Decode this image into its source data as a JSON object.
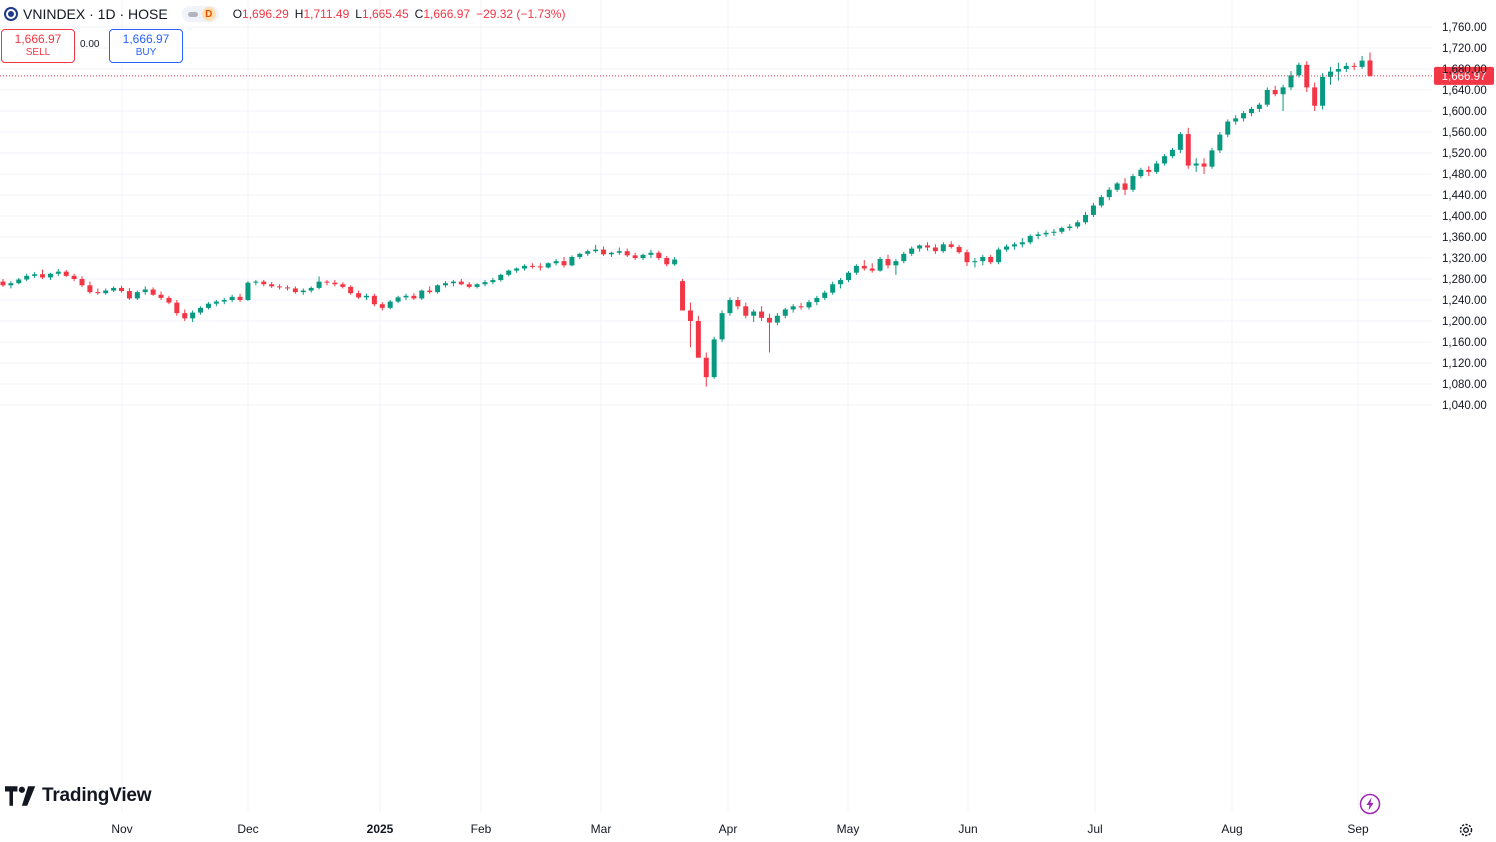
{
  "symbol": {
    "title": "VNINDEX · 1D · HOSE",
    "status_badge": "D"
  },
  "ohlc": {
    "o_label": "O",
    "o_value": "1,696.29",
    "h_label": "H",
    "h_value": "1,711.49",
    "l_label": "L",
    "l_value": "1,665.45",
    "c_label": "C",
    "c_value": "1,666.97",
    "change": "−29.32 (−1.73%)"
  },
  "trade": {
    "sell_price": "1,666.97",
    "sell_label": "SELL",
    "spread": "0.00",
    "buy_price": "1,666.97",
    "buy_label": "BUY"
  },
  "branding": {
    "logo_text": "TradingView"
  },
  "price_label": "1,666.97",
  "colors": {
    "up": "#089981",
    "down": "#f23645",
    "grid": "#f0f3fa",
    "axis_text": "#131722"
  },
  "chart_data": {
    "type": "candlestick",
    "title": "",
    "y_ticks": [
      "1,040.00",
      "1,080.00",
      "1,120.00",
      "1,160.00",
      "1,200.00",
      "1,240.00",
      "1,280.00",
      "1,320.00",
      "1,360.00",
      "1,400.00",
      "1,440.00",
      "1,480.00",
      "1,520.00",
      "1,560.00",
      "1,600.00",
      "1,640.00",
      "1,680.00",
      "1,720.00",
      "1,760.00"
    ],
    "ylim": [
      1020,
      1775
    ],
    "x_labels": [
      "Nov",
      "Dec",
      "2025",
      "Feb",
      "Mar",
      "Apr",
      "May",
      "Jun",
      "Jul",
      "Aug",
      "Sep"
    ],
    "last_price": 1666.97,
    "last_close_line": "dotted",
    "grid": true,
    "candles_ohlc": [
      [
        1275,
        1280,
        1265,
        1268
      ],
      [
        1268,
        1276,
        1262,
        1272
      ],
      [
        1272,
        1282,
        1270,
        1279
      ],
      [
        1279,
        1290,
        1276,
        1286
      ],
      [
        1286,
        1293,
        1282,
        1289
      ],
      [
        1289,
        1298,
        1280,
        1283
      ],
      [
        1283,
        1292,
        1278,
        1290
      ],
      [
        1290,
        1299,
        1286,
        1294
      ],
      [
        1294,
        1297,
        1284,
        1286
      ],
      [
        1286,
        1290,
        1276,
        1280
      ],
      [
        1280,
        1285,
        1265,
        1268
      ],
      [
        1268,
        1275,
        1252,
        1255
      ],
      [
        1255,
        1262,
        1250,
        1253
      ],
      [
        1253,
        1262,
        1250,
        1258
      ],
      [
        1258,
        1266,
        1255,
        1263
      ],
      [
        1263,
        1267,
        1254,
        1257
      ],
      [
        1257,
        1263,
        1240,
        1243
      ],
      [
        1243,
        1258,
        1240,
        1255
      ],
      [
        1255,
        1266,
        1250,
        1260
      ],
      [
        1260,
        1264,
        1248,
        1250
      ],
      [
        1250,
        1256,
        1240,
        1244
      ],
      [
        1244,
        1248,
        1232,
        1235
      ],
      [
        1235,
        1240,
        1210,
        1215
      ],
      [
        1215,
        1222,
        1200,
        1205
      ],
      [
        1205,
        1220,
        1198,
        1216
      ],
      [
        1216,
        1228,
        1212,
        1225
      ],
      [
        1225,
        1236,
        1222,
        1233
      ],
      [
        1233,
        1240,
        1228,
        1237
      ],
      [
        1237,
        1244,
        1232,
        1240
      ],
      [
        1240,
        1250,
        1236,
        1246
      ],
      [
        1246,
        1252,
        1236,
        1240
      ],
      [
        1240,
        1276,
        1238,
        1273
      ],
      [
        1273,
        1278,
        1268,
        1275
      ],
      [
        1275,
        1278,
        1266,
        1270
      ],
      [
        1270,
        1274,
        1263,
        1266
      ],
      [
        1266,
        1270,
        1260,
        1264
      ],
      [
        1264,
        1268,
        1258,
        1262
      ],
      [
        1262,
        1266,
        1252,
        1255
      ],
      [
        1255,
        1262,
        1250,
        1258
      ],
      [
        1258,
        1266,
        1254,
        1263
      ],
      [
        1263,
        1285,
        1260,
        1275
      ],
      [
        1275,
        1278,
        1268,
        1273
      ],
      [
        1273,
        1278,
        1266,
        1270
      ],
      [
        1270,
        1274,
        1262,
        1265
      ],
      [
        1265,
        1268,
        1250,
        1253
      ],
      [
        1253,
        1258,
        1242,
        1245
      ],
      [
        1245,
        1252,
        1240,
        1248
      ],
      [
        1248,
        1252,
        1228,
        1232
      ],
      [
        1232,
        1236,
        1220,
        1225
      ],
      [
        1225,
        1240,
        1222,
        1237
      ],
      [
        1237,
        1248,
        1234,
        1245
      ],
      [
        1245,
        1252,
        1240,
        1248
      ],
      [
        1248,
        1253,
        1240,
        1243
      ],
      [
        1243,
        1260,
        1240,
        1258
      ],
      [
        1258,
        1266,
        1252,
        1255
      ],
      [
        1255,
        1270,
        1252,
        1268
      ],
      [
        1268,
        1276,
        1264,
        1272
      ],
      [
        1272,
        1278,
        1266,
        1275
      ],
      [
        1275,
        1280,
        1268,
        1270
      ],
      [
        1270,
        1274,
        1262,
        1265
      ],
      [
        1265,
        1272,
        1262,
        1270
      ],
      [
        1270,
        1278,
        1266,
        1274
      ],
      [
        1274,
        1282,
        1270,
        1278
      ],
      [
        1278,
        1290,
        1275,
        1288
      ],
      [
        1288,
        1298,
        1285,
        1296
      ],
      [
        1296,
        1302,
        1292,
        1300
      ],
      [
        1300,
        1308,
        1296,
        1305
      ],
      [
        1305,
        1310,
        1300,
        1304
      ],
      [
        1304,
        1310,
        1296,
        1302
      ],
      [
        1302,
        1312,
        1300,
        1310
      ],
      [
        1310,
        1318,
        1306,
        1314
      ],
      [
        1314,
        1322,
        1302,
        1306
      ],
      [
        1306,
        1325,
        1304,
        1322
      ],
      [
        1322,
        1330,
        1318,
        1328
      ],
      [
        1328,
        1336,
        1324,
        1333
      ],
      [
        1333,
        1345,
        1330,
        1336
      ],
      [
        1336,
        1342,
        1324,
        1327
      ],
      [
        1327,
        1332,
        1322,
        1330
      ],
      [
        1330,
        1340,
        1326,
        1333
      ],
      [
        1333,
        1338,
        1322,
        1325
      ],
      [
        1325,
        1330,
        1316,
        1320
      ],
      [
        1320,
        1328,
        1316,
        1326
      ],
      [
        1326,
        1336,
        1320,
        1330
      ],
      [
        1330,
        1334,
        1316,
        1320
      ],
      [
        1320,
        1324,
        1304,
        1308
      ],
      [
        1308,
        1322,
        1305,
        1317
      ],
      [
        1276,
        1280,
        1238,
        1220
      ],
      [
        1220,
        1235,
        1150,
        1200
      ],
      [
        1200,
        1210,
        1140,
        1130
      ],
      [
        1130,
        1140,
        1075,
        1093
      ],
      [
        1093,
        1170,
        1090,
        1165
      ],
      [
        1165,
        1220,
        1160,
        1215
      ],
      [
        1215,
        1245,
        1210,
        1240
      ],
      [
        1240,
        1246,
        1222,
        1228
      ],
      [
        1228,
        1235,
        1205,
        1210
      ],
      [
        1210,
        1222,
        1198,
        1218
      ],
      [
        1218,
        1228,
        1200,
        1206
      ],
      [
        1206,
        1214,
        1140,
        1197
      ],
      [
        1197,
        1215,
        1192,
        1210
      ],
      [
        1210,
        1225,
        1205,
        1222
      ],
      [
        1222,
        1232,
        1216,
        1228
      ],
      [
        1228,
        1234,
        1222,
        1226
      ],
      [
        1226,
        1240,
        1222,
        1236
      ],
      [
        1236,
        1248,
        1230,
        1244
      ],
      [
        1244,
        1258,
        1240,
        1254
      ],
      [
        1254,
        1275,
        1250,
        1270
      ],
      [
        1270,
        1282,
        1262,
        1278
      ],
      [
        1278,
        1295,
        1274,
        1292
      ],
      [
        1292,
        1308,
        1288,
        1305
      ],
      [
        1305,
        1316,
        1296,
        1300
      ],
      [
        1300,
        1310,
        1292,
        1296
      ],
      [
        1296,
        1322,
        1294,
        1318
      ],
      [
        1318,
        1326,
        1300,
        1306
      ],
      [
        1306,
        1318,
        1288,
        1314
      ],
      [
        1314,
        1332,
        1310,
        1328
      ],
      [
        1328,
        1342,
        1324,
        1338
      ],
      [
        1338,
        1346,
        1332,
        1344
      ],
      [
        1344,
        1350,
        1334,
        1340
      ],
      [
        1340,
        1346,
        1328,
        1333
      ],
      [
        1333,
        1350,
        1330,
        1346
      ],
      [
        1346,
        1352,
        1338,
        1341
      ],
      [
        1341,
        1345,
        1328,
        1331
      ],
      [
        1331,
        1336,
        1305,
        1312
      ],
      [
        1312,
        1320,
        1302,
        1314
      ],
      [
        1314,
        1326,
        1306,
        1322
      ],
      [
        1322,
        1326,
        1308,
        1312
      ],
      [
        1312,
        1340,
        1308,
        1336
      ],
      [
        1336,
        1346,
        1332,
        1342
      ],
      [
        1342,
        1350,
        1336,
        1346
      ],
      [
        1346,
        1358,
        1340,
        1350
      ],
      [
        1350,
        1365,
        1346,
        1362
      ],
      [
        1362,
        1370,
        1356,
        1365
      ],
      [
        1365,
        1373,
        1360,
        1368
      ],
      [
        1368,
        1375,
        1362,
        1370
      ],
      [
        1370,
        1380,
        1366,
        1377
      ],
      [
        1377,
        1385,
        1372,
        1380
      ],
      [
        1380,
        1392,
        1376,
        1388
      ],
      [
        1388,
        1408,
        1384,
        1402
      ],
      [
        1402,
        1425,
        1398,
        1420
      ],
      [
        1420,
        1440,
        1416,
        1436
      ],
      [
        1436,
        1455,
        1430,
        1450
      ],
      [
        1450,
        1465,
        1446,
        1462
      ],
      [
        1462,
        1472,
        1440,
        1450
      ],
      [
        1450,
        1480,
        1446,
        1476
      ],
      [
        1476,
        1492,
        1472,
        1488
      ],
      [
        1488,
        1495,
        1476,
        1484
      ],
      [
        1484,
        1505,
        1480,
        1500
      ],
      [
        1500,
        1518,
        1496,
        1514
      ],
      [
        1514,
        1530,
        1510,
        1526
      ],
      [
        1526,
        1560,
        1520,
        1556
      ],
      [
        1556,
        1568,
        1490,
        1496
      ],
      [
        1496,
        1510,
        1484,
        1500
      ],
      [
        1500,
        1510,
        1480,
        1494
      ],
      [
        1494,
        1530,
        1490,
        1525
      ],
      [
        1525,
        1560,
        1520,
        1555
      ],
      [
        1555,
        1584,
        1550,
        1580
      ],
      [
        1580,
        1592,
        1574,
        1586
      ],
      [
        1586,
        1600,
        1580,
        1596
      ],
      [
        1596,
        1608,
        1590,
        1604
      ],
      [
        1604,
        1616,
        1598,
        1612
      ],
      [
        1612,
        1645,
        1608,
        1640
      ],
      [
        1640,
        1648,
        1628,
        1632
      ],
      [
        1632,
        1650,
        1600,
        1645
      ],
      [
        1645,
        1676,
        1640,
        1668
      ],
      [
        1668,
        1692,
        1664,
        1688
      ],
      [
        1688,
        1695,
        1636,
        1645
      ],
      [
        1645,
        1654,
        1600,
        1610
      ],
      [
        1610,
        1672,
        1603,
        1665
      ],
      [
        1665,
        1684,
        1650,
        1675
      ],
      [
        1675,
        1692,
        1658,
        1680
      ],
      [
        1680,
        1692,
        1674,
        1686
      ],
      [
        1686,
        1692,
        1678,
        1684
      ],
      [
        1684,
        1705,
        1680,
        1696
      ],
      [
        1696.29,
        1711.49,
        1665.45,
        1666.97
      ]
    ]
  }
}
